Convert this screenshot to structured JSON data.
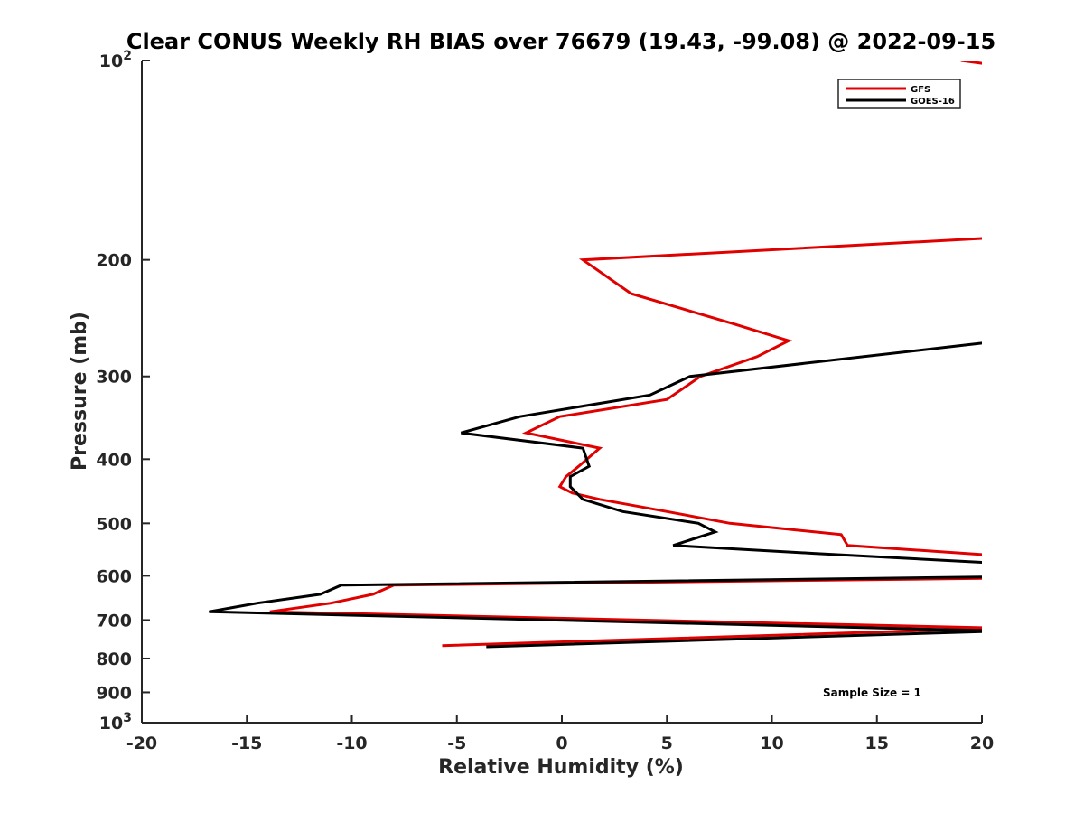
{
  "chart_data": {
    "type": "line",
    "title": "Clear CONUS Weekly RH BIAS over 76679 (19.43, -99.08) @ 2022-09-15",
    "xlabel": "Relative Humidity (%)",
    "ylabel": "Pressure (mb)",
    "xlim": [
      -20,
      20
    ],
    "ylim": [
      100,
      1000
    ],
    "y_scale": "log",
    "y_reversed": true,
    "grid": false,
    "legend_location": "top-right",
    "x_ticks": [
      "-20",
      "-15",
      "-10",
      "-5",
      "0",
      "5",
      "10",
      "15",
      "20"
    ],
    "y_ticks": [
      {
        "value": 100,
        "base": "10",
        "exp": "2"
      },
      {
        "value": 200,
        "label": "200"
      },
      {
        "value": 300,
        "label": "300"
      },
      {
        "value": 400,
        "label": "400"
      },
      {
        "value": 500,
        "label": "500"
      },
      {
        "value": 600,
        "label": "600"
      },
      {
        "value": 700,
        "label": "700"
      },
      {
        "value": 800,
        "label": "800"
      },
      {
        "value": 900,
        "label": "900"
      },
      {
        "value": 1000,
        "base": "10",
        "exp": "3"
      }
    ],
    "annotation": "Sample Size = 1",
    "series": [
      {
        "name": "GFS",
        "color": "#e00000",
        "segments": [
          [
            [
              19.0,
              100
            ],
            [
              21.0,
              102
            ]
          ],
          [
            [
              21.0,
              185
            ],
            [
              1.0,
              200
            ],
            [
              3.3,
              225
            ],
            [
              8.2,
              250
            ],
            [
              10.8,
              265
            ],
            [
              9.3,
              280
            ],
            [
              6.6,
              300
            ],
            [
              5.0,
              325
            ],
            [
              -0.1,
              345
            ],
            [
              -1.7,
              365
            ],
            [
              1.8,
              385
            ],
            [
              0.8,
              410
            ],
            [
              0.2,
              425
            ],
            [
              -0.1,
              440
            ],
            [
              0.5,
              450
            ],
            [
              1.8,
              460
            ],
            [
              5.0,
              480
            ],
            [
              8.0,
              500
            ],
            [
              13.3,
              520
            ],
            [
              13.6,
              540
            ],
            [
              21.0,
              560
            ]
          ],
          [
            [
              21.0,
              605
            ],
            [
              -8.0,
              620
            ],
            [
              -9.0,
              640
            ],
            [
              -11.0,
              660
            ],
            [
              -13.9,
              680
            ],
            [
              21.0,
              720
            ],
            [
              -5.7,
              765
            ]
          ]
        ]
      },
      {
        "name": "GOES-16",
        "color": "#000000",
        "segments": [
          [
            [
              21.0,
              265
            ],
            [
              6.1,
              300
            ],
            [
              4.2,
              320
            ],
            [
              -2.0,
              345
            ],
            [
              -4.8,
              365
            ],
            [
              1.0,
              385
            ],
            [
              1.3,
              410
            ],
            [
              0.4,
              425
            ],
            [
              0.4,
              440
            ],
            [
              1.0,
              460
            ],
            [
              2.9,
              480
            ],
            [
              6.5,
              500
            ],
            [
              7.3,
              515
            ],
            [
              5.3,
              540
            ],
            [
              12.0,
              555
            ],
            [
              21.0,
              575
            ]
          ],
          [
            [
              21.0,
              602
            ],
            [
              -10.5,
              620
            ],
            [
              -11.5,
              640
            ],
            [
              -14.5,
              660
            ],
            [
              -16.8,
              680
            ],
            [
              21.0,
              727
            ],
            [
              -3.6,
              768
            ]
          ]
        ]
      }
    ]
  }
}
